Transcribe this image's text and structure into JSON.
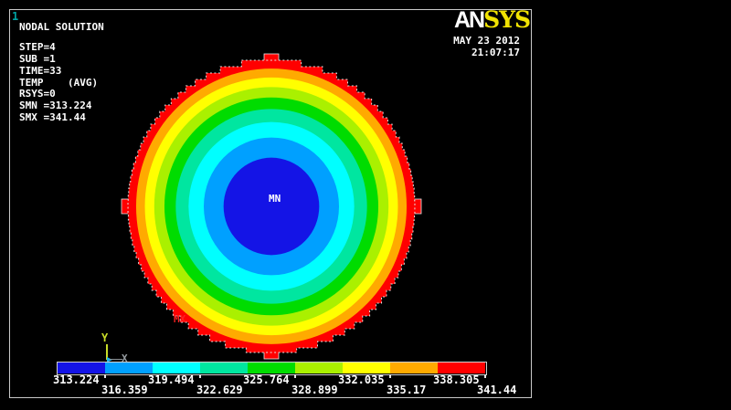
{
  "plot_number": "1",
  "header": {
    "logo_an": "AN",
    "logo_sys": "SYS",
    "date": "MAY 23 2012",
    "time": "21:07:17"
  },
  "annotation": {
    "lines": [
      "NODAL SOLUTION",
      "STEP=4",
      "SUB =1",
      "TIME=33",
      "TEMP    (AVG)",
      "RSYS=0",
      "SMN =313.224",
      "SMX =341.44"
    ]
  },
  "plot": {
    "min_label": "MN",
    "max_label": "MX"
  },
  "triad": {
    "x_label": "X",
    "y_label": "Y"
  },
  "chart_data": {
    "type": "heatmap",
    "subtype": "filled-contour-nodal-temperature",
    "title": "NODAL SOLUTION",
    "quantity": "TEMP (AVG)",
    "step": 4,
    "substep": 1,
    "time": 33,
    "rsys": 0,
    "smn": 313.224,
    "smx": 341.44,
    "contour_levels": [
      313.224,
      316.359,
      319.494,
      322.629,
      325.764,
      328.899,
      332.035,
      335.17,
      338.305,
      341.44
    ],
    "legend_row_upper": [
      "313.224",
      "319.494",
      "325.764",
      "332.035",
      "338.305"
    ],
    "legend_row_lower": [
      "316.359",
      "322.629",
      "328.899",
      "335.17",
      "341.44"
    ],
    "band_colors": [
      "#1414e6",
      "#00a0ff",
      "#00ffff",
      "#00e6a0",
      "#00dc00",
      "#aaf000",
      "#ffff00",
      "#ffaa00",
      "#ff0000"
    ],
    "legend_position": "bottom",
    "shape": "circular-cross-section",
    "min_location": "center",
    "max_location": "outer-boundary"
  }
}
